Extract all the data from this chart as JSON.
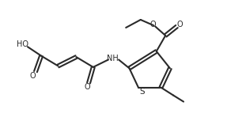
{
  "bg_color": "#ffffff",
  "line_color": "#2a2a2a",
  "line_width": 1.5,
  "figsize": [
    2.87,
    1.67
  ],
  "dpi": 100,
  "xlim": [
    0,
    10
  ],
  "ylim": [
    0,
    5.8
  ]
}
